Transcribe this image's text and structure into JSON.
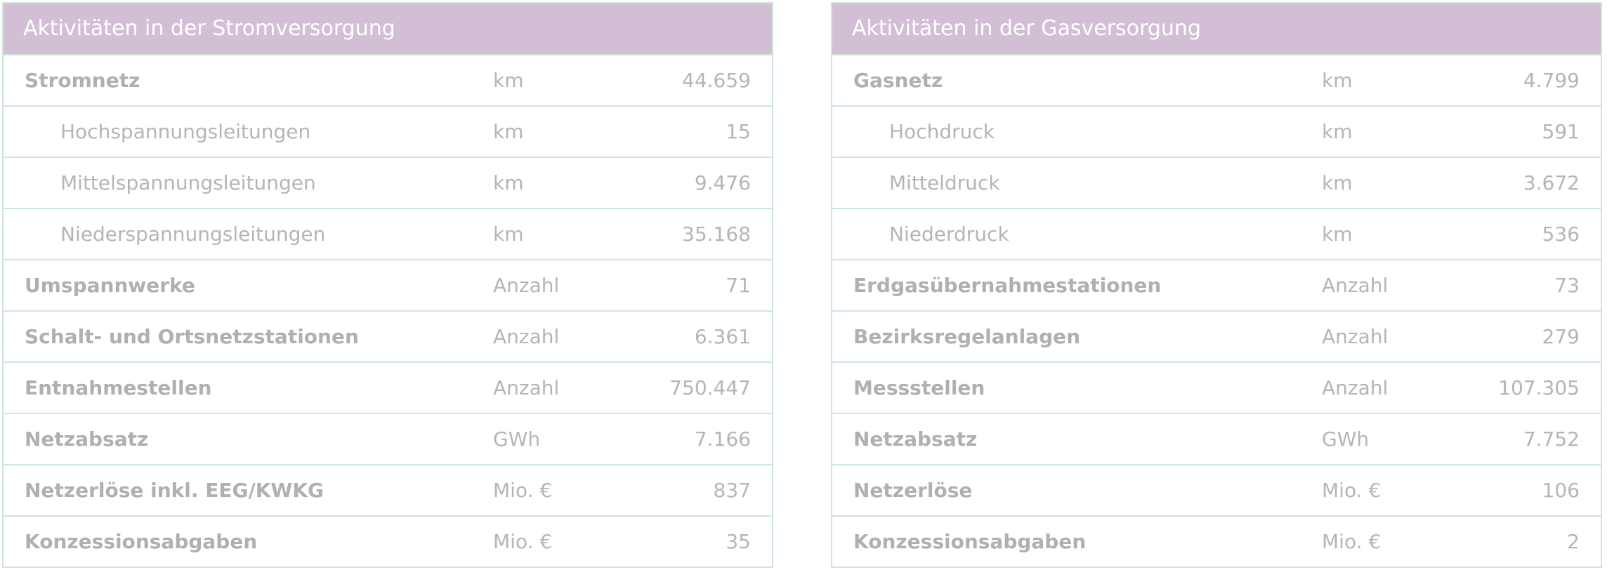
{
  "strom": {
    "title": "Aktivitäten in der Stromversorgung",
    "rows": [
      {
        "label": "Stromnetz",
        "unit": "km",
        "value": "44.659"
      },
      {
        "label": "Hochspannungsleitungen",
        "unit": "km",
        "value": "15"
      },
      {
        "label": "Mittelspannungsleitungen",
        "unit": "km",
        "value": "9.476"
      },
      {
        "label": "Niederspannungsleitungen",
        "unit": "km",
        "value": "35.168"
      },
      {
        "label": "Umspannwerke",
        "unit": "Anzahl",
        "value": "71"
      },
      {
        "label": "Schalt- und Ortsnetzstationen",
        "unit": "Anzahl",
        "value": "6.361"
      },
      {
        "label": "Entnahmestellen",
        "unit": "Anzahl",
        "value": "750.447"
      },
      {
        "label": "Netzabsatz",
        "unit": "GWh",
        "value": "7.166"
      },
      {
        "label": "Netzerlöse inkl. EEG/KWKG",
        "unit": "Mio. €",
        "value": "837"
      },
      {
        "label": "Konzessionsabgaben",
        "unit": "Mio. €",
        "value": "35"
      }
    ]
  },
  "gas": {
    "title": "Aktivitäten in der Gasversorgung",
    "rows": [
      {
        "label": "Gasnetz",
        "unit": "km",
        "value": "4.799"
      },
      {
        "label": "Hochdruck",
        "unit": "km",
        "value": "591"
      },
      {
        "label": "Mitteldruck",
        "unit": "km",
        "value": "3.672"
      },
      {
        "label": "Niederdruck",
        "unit": "km",
        "value": "536"
      },
      {
        "label": "Erdgasübernahmestationen",
        "unit": "Anzahl",
        "value": "73"
      },
      {
        "label": "Bezirksregelanlagen",
        "unit": "Anzahl",
        "value": "279"
      },
      {
        "label": "Messstellen",
        "unit": "Anzahl",
        "value": "107.305"
      },
      {
        "label": "Netzabsatz",
        "unit": "GWh",
        "value": "7.752"
      },
      {
        "label": "Netzerlöse",
        "unit": "Mio. €",
        "value": "106"
      },
      {
        "label": "Konzessionsabgaben",
        "unit": "Mio. €",
        "value": "2"
      }
    ]
  },
  "colors": {
    "header_bg": "#d2bfd5",
    "border": "#cfe6d6",
    "text": "#b5b5b5"
  }
}
